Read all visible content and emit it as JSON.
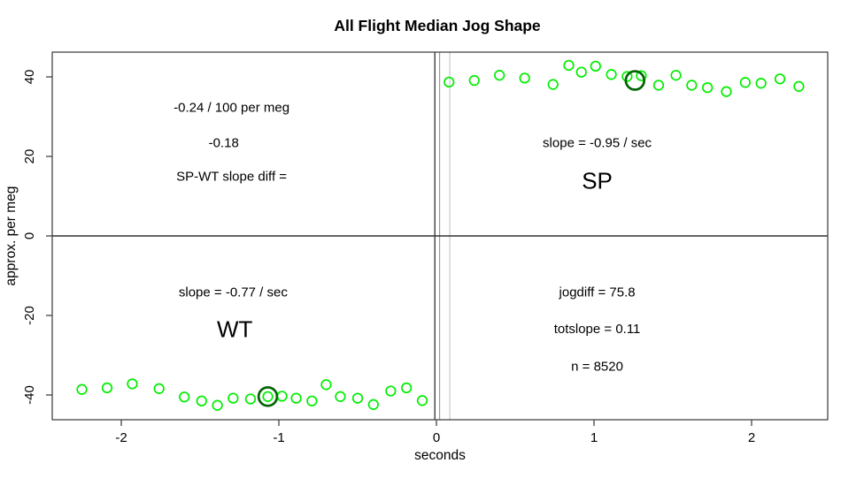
{
  "colors": {
    "point_green": "#00EE00",
    "highlight_dark_green": "#006400",
    "axis": "#454545",
    "zero_line": "#333333",
    "background": "#ffffff"
  },
  "chart_data": {
    "type": "scatter",
    "title": "All Flight Median Jog Shape",
    "xlabel": "seconds",
    "ylabel": "approx. per meg",
    "xlim": [
      -2.44,
      2.48
    ],
    "ylim": [
      -46.2,
      46.2
    ],
    "x_ticks": [
      -2,
      -1,
      0,
      1,
      2
    ],
    "y_ticks": [
      -40,
      -20,
      0,
      20,
      40
    ],
    "grid": false,
    "legend": "none",
    "marker": "open-circle",
    "series": [
      {
        "name": "WT",
        "color": "#00EE00",
        "points": [
          [
            -2.25,
            -38.6
          ],
          [
            -2.09,
            -38.2
          ],
          [
            -1.93,
            -37.2
          ],
          [
            -1.76,
            -38.4
          ],
          [
            -1.6,
            -40.5
          ],
          [
            -1.49,
            -41.5
          ],
          [
            -1.39,
            -42.6
          ],
          [
            -1.29,
            -40.8
          ],
          [
            -1.18,
            -41.0
          ],
          [
            -1.07,
            -40.4
          ],
          [
            -0.98,
            -40.3
          ],
          [
            -0.89,
            -40.8
          ],
          [
            -0.79,
            -41.5
          ],
          [
            -0.7,
            -37.4
          ],
          [
            -0.61,
            -40.4
          ],
          [
            -0.5,
            -40.8
          ],
          [
            -0.4,
            -42.4
          ],
          [
            -0.29,
            -39.0
          ],
          [
            -0.19,
            -38.2
          ],
          [
            -0.09,
            -41.4
          ]
        ]
      },
      {
        "name": "SP",
        "color": "#00EE00",
        "points": [
          [
            0.08,
            38.7
          ],
          [
            0.24,
            39.1
          ],
          [
            0.4,
            40.4
          ],
          [
            0.56,
            39.7
          ],
          [
            0.74,
            38.1
          ],
          [
            0.84,
            42.9
          ],
          [
            0.92,
            41.2
          ],
          [
            1.01,
            42.7
          ],
          [
            1.11,
            40.6
          ],
          [
            1.21,
            40.1
          ],
          [
            1.3,
            40.3
          ],
          [
            1.41,
            37.9
          ],
          [
            1.52,
            40.4
          ],
          [
            1.62,
            37.9
          ],
          [
            1.72,
            37.3
          ],
          [
            1.84,
            36.3
          ],
          [
            1.96,
            38.6
          ],
          [
            2.06,
            38.4
          ],
          [
            2.18,
            39.5
          ],
          [
            2.3,
            37.6
          ]
        ]
      }
    ],
    "highlights": [
      {
        "name": "wt-median-point",
        "x": -1.07,
        "y": -40.4,
        "color": "#006400"
      },
      {
        "name": "sp-median-point",
        "x": 1.26,
        "y": 39.1,
        "color": "#006400"
      }
    ],
    "reference_lines": {
      "hline": {
        "y": 0,
        "color": "#333333",
        "width": 1.4
      },
      "vlines": [
        {
          "x": -0.01,
          "color": "#3c3c3c",
          "width": 1.4
        },
        {
          "x": 0.02,
          "color": "#9a9a9a",
          "width": 1.2
        },
        {
          "x": 0.085,
          "color": "#c8c8c8",
          "width": 1.2
        }
      ]
    },
    "annotations": [
      {
        "name": "slope-diff-per-meg",
        "text": "-0.24 / 100 per meg",
        "x": -1.3,
        "y": 32.2,
        "size": "normal"
      },
      {
        "name": "slope-diff-value",
        "text": "-0.18",
        "x": -1.35,
        "y": 23.3,
        "size": "normal"
      },
      {
        "name": "slope-diff-label",
        "text": "SP-WT slope diff =",
        "x": -1.3,
        "y": 14.9,
        "size": "normal"
      },
      {
        "name": "sp-slope",
        "text": "slope = -0.95 / sec",
        "x": 1.02,
        "y": 23.3,
        "size": "normal"
      },
      {
        "name": "sp-group-label",
        "text": "SP",
        "x": 1.02,
        "y": 13.9,
        "size": "large"
      },
      {
        "name": "wt-slope",
        "text": "slope = -0.77 / sec",
        "x": -1.29,
        "y": -14.2,
        "size": "normal"
      },
      {
        "name": "wt-group-label",
        "text": "WT",
        "x": -1.28,
        "y": -23.4,
        "size": "large"
      },
      {
        "name": "jogdiff-value",
        "text": "jogdiff = 75.8",
        "x": 1.02,
        "y": -14.2,
        "size": "normal"
      },
      {
        "name": "totslope-value",
        "text": "totslope = 0.11",
        "x": 1.02,
        "y": -23.4,
        "size": "normal"
      },
      {
        "name": "n-count",
        "text": "n = 8520",
        "x": 1.02,
        "y": -32.9,
        "size": "normal"
      }
    ]
  }
}
